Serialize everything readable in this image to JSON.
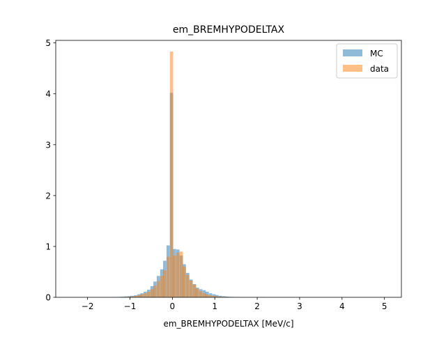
{
  "chart_data": {
    "type": "histogram",
    "title": "em_BREMHYPODELTAX",
    "xlabel": "em_BREMHYPODELTAX [MeV/c]",
    "ylabel": "",
    "xlim": [
      -2.75,
      5.4
    ],
    "ylim": [
      0,
      5.05
    ],
    "xticks": [
      -2,
      -1,
      0,
      1,
      2,
      3,
      4,
      5
    ],
    "yticks": [
      0,
      1,
      2,
      3,
      4,
      5
    ],
    "grid": false,
    "legend_position": "top-right",
    "bin_edges_range": [
      -2.6,
      5.1
    ],
    "n_bins": 100,
    "series": [
      {
        "name": "MC",
        "color": "#1f77b4",
        "alpha": 0.5,
        "bins": [
          {
            "x": -1.41,
            "y": 0.003
          },
          {
            "x": -1.33,
            "y": 0.005
          },
          {
            "x": -1.25,
            "y": 0.008
          },
          {
            "x": -1.18,
            "y": 0.012
          },
          {
            "x": -1.1,
            "y": 0.018
          },
          {
            "x": -1.02,
            "y": 0.022
          },
          {
            "x": -0.95,
            "y": 0.03
          },
          {
            "x": -0.87,
            "y": 0.04
          },
          {
            "x": -0.79,
            "y": 0.06
          },
          {
            "x": -0.72,
            "y": 0.08
          },
          {
            "x": -0.64,
            "y": 0.11
          },
          {
            "x": -0.56,
            "y": 0.15
          },
          {
            "x": -0.48,
            "y": 0.22
          },
          {
            "x": -0.41,
            "y": 0.31
          },
          {
            "x": -0.33,
            "y": 0.42
          },
          {
            "x": -0.25,
            "y": 0.55
          },
          {
            "x": -0.18,
            "y": 0.72
          },
          {
            "x": -0.1,
            "y": 1.02
          },
          {
            "x": -0.02,
            "y": 4.02
          },
          {
            "x": 0.05,
            "y": 0.95
          },
          {
            "x": 0.13,
            "y": 0.94
          },
          {
            "x": 0.21,
            "y": 0.82
          },
          {
            "x": 0.28,
            "y": 0.65
          },
          {
            "x": 0.36,
            "y": 0.48
          },
          {
            "x": 0.44,
            "y": 0.35
          },
          {
            "x": 0.52,
            "y": 0.26
          },
          {
            "x": 0.59,
            "y": 0.19
          },
          {
            "x": 0.67,
            "y": 0.16
          },
          {
            "x": 0.75,
            "y": 0.14
          },
          {
            "x": 0.82,
            "y": 0.11
          },
          {
            "x": 0.9,
            "y": 0.08
          },
          {
            "x": 0.98,
            "y": 0.06
          },
          {
            "x": 1.05,
            "y": 0.045
          },
          {
            "x": 1.13,
            "y": 0.03
          },
          {
            "x": 1.21,
            "y": 0.022
          },
          {
            "x": 1.28,
            "y": 0.015
          },
          {
            "x": 1.36,
            "y": 0.01
          },
          {
            "x": 1.44,
            "y": 0.008
          },
          {
            "x": 1.52,
            "y": 0.005
          },
          {
            "x": 1.59,
            "y": 0.004
          },
          {
            "x": 1.67,
            "y": 0.003
          },
          {
            "x": 2.13,
            "y": 0.004
          }
        ]
      },
      {
        "name": "data",
        "color": "#ff7f0e",
        "alpha": 0.5,
        "bins": [
          {
            "x": -1.18,
            "y": 0.004
          },
          {
            "x": -1.1,
            "y": 0.008
          },
          {
            "x": -1.02,
            "y": 0.012
          },
          {
            "x": -0.95,
            "y": 0.018
          },
          {
            "x": -0.87,
            "y": 0.028
          },
          {
            "x": -0.79,
            "y": 0.04
          },
          {
            "x": -0.72,
            "y": 0.06
          },
          {
            "x": -0.64,
            "y": 0.08
          },
          {
            "x": -0.56,
            "y": 0.11
          },
          {
            "x": -0.48,
            "y": 0.16
          },
          {
            "x": -0.41,
            "y": 0.23
          },
          {
            "x": -0.33,
            "y": 0.32
          },
          {
            "x": -0.25,
            "y": 0.42
          },
          {
            "x": -0.18,
            "y": 0.53
          },
          {
            "x": -0.1,
            "y": 0.8
          },
          {
            "x": -0.02,
            "y": 4.83
          },
          {
            "x": 0.05,
            "y": 0.82
          },
          {
            "x": 0.13,
            "y": 0.88
          },
          {
            "x": 0.21,
            "y": 0.9
          },
          {
            "x": 0.28,
            "y": 0.6
          },
          {
            "x": 0.36,
            "y": 0.44
          },
          {
            "x": 0.44,
            "y": 0.33
          },
          {
            "x": 0.52,
            "y": 0.25
          },
          {
            "x": 0.59,
            "y": 0.17
          },
          {
            "x": 0.67,
            "y": 0.12
          },
          {
            "x": 0.75,
            "y": 0.08
          },
          {
            "x": 0.82,
            "y": 0.055
          },
          {
            "x": 0.9,
            "y": 0.04
          },
          {
            "x": 0.98,
            "y": 0.03
          },
          {
            "x": 1.05,
            "y": 0.02
          },
          {
            "x": 1.13,
            "y": 0.014
          },
          {
            "x": 1.21,
            "y": 0.01
          },
          {
            "x": 1.28,
            "y": 0.007
          },
          {
            "x": 1.36,
            "y": 0.005
          },
          {
            "x": 2.13,
            "y": 0.006
          }
        ]
      }
    ]
  }
}
